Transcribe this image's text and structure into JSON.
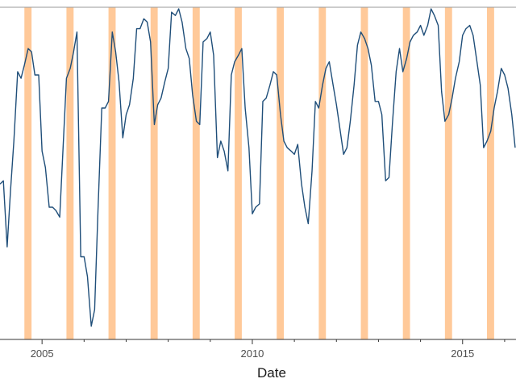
{
  "chart_data": {
    "type": "line",
    "title": "",
    "xlabel": "Date",
    "ylabel": "",
    "x_tick_labels": [
      "2005",
      "2010",
      "2015"
    ],
    "x_tick_values": [
      2005,
      2010,
      2015
    ],
    "x_minor_tick_values": [
      2006,
      2007,
      2008,
      2009,
      2011,
      2012,
      2013,
      2014,
      2016
    ],
    "xlim": [
      2004.0,
      2016.27
    ],
    "ylim": [
      0,
      100
    ],
    "grid": false,
    "legend": "none",
    "colors": {
      "line": "#1f4e79",
      "band": "#ffc999",
      "axis": "#333333"
    },
    "highlight_bands": [
      {
        "start": 2004.58,
        "end": 2004.75
      },
      {
        "start": 2005.58,
        "end": 2005.75
      },
      {
        "start": 2006.58,
        "end": 2006.75
      },
      {
        "start": 2007.58,
        "end": 2007.75
      },
      {
        "start": 2008.58,
        "end": 2008.75
      },
      {
        "start": 2009.58,
        "end": 2009.75
      },
      {
        "start": 2010.58,
        "end": 2010.75
      },
      {
        "start": 2011.58,
        "end": 2011.75
      },
      {
        "start": 2012.58,
        "end": 2012.75
      },
      {
        "start": 2013.58,
        "end": 2013.75
      },
      {
        "start": 2014.58,
        "end": 2014.75
      },
      {
        "start": 2015.58,
        "end": 2015.75
      }
    ],
    "series": [
      {
        "name": "",
        "x": [
          2004.0,
          2004.08,
          2004.17,
          2004.25,
          2004.33,
          2004.42,
          2004.5,
          2004.58,
          2004.67,
          2004.75,
          2004.83,
          2004.92,
          2005.0,
          2005.08,
          2005.17,
          2005.25,
          2005.33,
          2005.42,
          2005.5,
          2005.58,
          2005.67,
          2005.75,
          2005.83,
          2005.92,
          2006.0,
          2006.08,
          2006.17,
          2006.25,
          2006.33,
          2006.42,
          2006.5,
          2006.58,
          2006.67,
          2006.75,
          2006.83,
          2006.92,
          2007.0,
          2007.08,
          2007.17,
          2007.25,
          2007.33,
          2007.42,
          2007.5,
          2007.58,
          2007.67,
          2007.75,
          2007.83,
          2007.92,
          2008.0,
          2008.08,
          2008.17,
          2008.25,
          2008.33,
          2008.42,
          2008.5,
          2008.58,
          2008.67,
          2008.75,
          2008.83,
          2008.92,
          2009.0,
          2009.08,
          2009.17,
          2009.25,
          2009.33,
          2009.42,
          2009.5,
          2009.58,
          2009.67,
          2009.75,
          2009.83,
          2009.92,
          2010.0,
          2010.08,
          2010.17,
          2010.25,
          2010.33,
          2010.42,
          2010.5,
          2010.58,
          2010.67,
          2010.75,
          2010.83,
          2010.92,
          2011.0,
          2011.08,
          2011.17,
          2011.25,
          2011.33,
          2011.42,
          2011.5,
          2011.58,
          2011.67,
          2011.75,
          2011.83,
          2011.92,
          2012.0,
          2012.08,
          2012.17,
          2012.25,
          2012.33,
          2012.42,
          2012.5,
          2012.58,
          2012.67,
          2012.75,
          2012.83,
          2012.92,
          2013.0,
          2013.08,
          2013.17,
          2013.25,
          2013.33,
          2013.42,
          2013.5,
          2013.58,
          2013.67,
          2013.75,
          2013.83,
          2013.92,
          2014.0,
          2014.08,
          2014.17,
          2014.25,
          2014.33,
          2014.42,
          2014.5,
          2014.58,
          2014.67,
          2014.75,
          2014.83,
          2014.92,
          2015.0,
          2015.08,
          2015.17,
          2015.25,
          2015.33,
          2015.42,
          2015.5,
          2015.58,
          2015.67,
          2015.75,
          2015.83,
          2015.92,
          2016.0,
          2016.08,
          2016.17,
          2016.25
        ],
        "values": [
          47,
          48,
          28,
          45,
          60,
          81,
          79,
          83,
          88,
          87,
          80,
          80,
          57,
          52,
          40,
          40,
          39,
          37,
          58,
          79,
          82,
          87,
          93,
          25,
          25,
          19,
          4,
          9,
          39,
          70,
          70,
          72,
          93,
          87,
          78,
          61,
          68,
          71,
          79,
          94,
          94,
          97,
          96,
          90,
          65,
          71,
          73,
          78,
          82,
          99,
          98,
          100,
          96,
          88,
          85,
          74,
          66,
          65,
          90,
          91,
          93,
          86,
          55,
          60,
          57,
          51,
          80,
          84,
          86,
          88,
          70,
          58,
          38,
          40,
          41,
          72,
          73,
          77,
          81,
          80,
          68,
          60,
          58,
          57,
          56,
          59,
          47,
          40,
          35,
          51,
          72,
          70,
          77,
          82,
          84,
          77,
          71,
          64,
          56,
          58,
          66,
          77,
          89,
          93,
          91,
          88,
          83,
          72,
          72,
          68,
          48,
          49,
          65,
          81,
          88,
          81,
          85,
          90,
          92,
          93,
          95,
          92,
          95,
          100,
          98,
          95,
          75,
          66,
          68,
          73,
          79,
          84,
          92,
          94,
          95,
          92,
          85,
          77,
          58,
          60,
          63,
          70,
          75,
          82,
          80,
          76,
          68,
          58
        ]
      }
    ]
  }
}
